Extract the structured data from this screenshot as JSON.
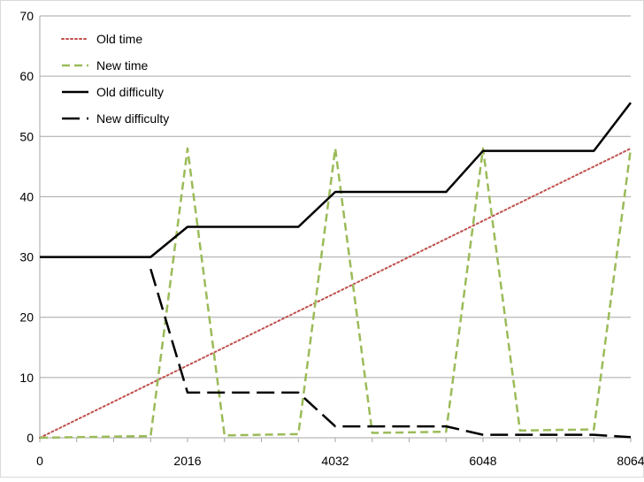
{
  "chart_data": {
    "type": "line",
    "title": "",
    "xlabel": "",
    "ylabel": "",
    "xlim": [
      0,
      8064
    ],
    "ylim": [
      0,
      70
    ],
    "x_ticks": [
      0,
      2016,
      4032,
      6048,
      8064
    ],
    "y_ticks": [
      0,
      10,
      20,
      30,
      40,
      50,
      60,
      70
    ],
    "grid": "horizontal",
    "legend_position": "top-left",
    "series": [
      {
        "name": "Old time",
        "color": "#c0504d",
        "style": "dotted",
        "points": [
          [
            0,
            0
          ],
          [
            8064,
            48
          ]
        ]
      },
      {
        "name": "New time",
        "color": "#9bbb59",
        "style": "dashed",
        "points": [
          [
            0,
            0
          ],
          [
            1512,
            0.3
          ],
          [
            2016,
            48
          ],
          [
            2520,
            0.4
          ],
          [
            3528,
            0.6
          ],
          [
            4032,
            48
          ],
          [
            4536,
            0.8
          ],
          [
            5544,
            1.0
          ],
          [
            6048,
            48
          ],
          [
            6552,
            1.2
          ],
          [
            7560,
            1.4
          ],
          [
            8064,
            48
          ]
        ]
      },
      {
        "name": "Old difficulty",
        "color": "#000000",
        "style": "solid",
        "points": [
          [
            0,
            30
          ],
          [
            1512,
            30
          ],
          [
            2016,
            35
          ],
          [
            3528,
            35
          ],
          [
            4032,
            40.8
          ],
          [
            5544,
            40.8
          ],
          [
            6048,
            47.6
          ],
          [
            7560,
            47.6
          ],
          [
            8064,
            55.6
          ]
        ]
      },
      {
        "name": "New difficulty",
        "color": "#000000",
        "style": "longdash",
        "points": [
          [
            1512,
            28
          ],
          [
            2016,
            7.5
          ],
          [
            3528,
            7.5
          ],
          [
            4032,
            1.9
          ],
          [
            5544,
            1.9
          ],
          [
            6048,
            0.5
          ],
          [
            7560,
            0.5
          ],
          [
            8064,
            0.1
          ]
        ]
      }
    ]
  }
}
